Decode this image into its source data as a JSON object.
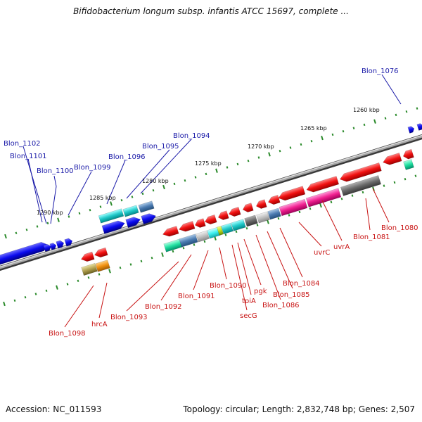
{
  "title": "Bifidobacterium longum subsp. infantis ATCC 15697, complete ...",
  "accession": "Accession: NC_011593",
  "summary": "Topology: circular; Length: 2,832,748 bp; Genes: 2,507",
  "scale_labels": [
    "1260 kbp",
    "1265 kbp",
    "1270 kbp",
    "1275 kbp",
    "1280 kbp",
    "1285 kbp",
    "1290 kbp"
  ],
  "upper_labels": [
    "Blon_1076",
    "Blon_1094",
    "Blon_1095",
    "Blon_1096",
    "Blon_1099",
    "Blon_1100",
    "Blon_1101",
    "Blon_1102"
  ],
  "lower_labels": [
    "Blon_1080",
    "Blon_1081",
    "uvrA",
    "uvrC",
    "Blon_1084",
    "Blon_1085",
    "Blon_1086",
    "pgk",
    "tpiA",
    "secG",
    "Blon_1090",
    "Blon_1091",
    "Blon_1092",
    "Blon_1093",
    "hrcA",
    "Blon_1098"
  ],
  "colors": {
    "forward_gene": "#0a0aee",
    "reverse_gene": "#f01010",
    "label_forward": "#1a1aa8",
    "label_reverse": "#c81414",
    "backbone": "#808080",
    "scale_dots": "#2a8a2a"
  }
}
